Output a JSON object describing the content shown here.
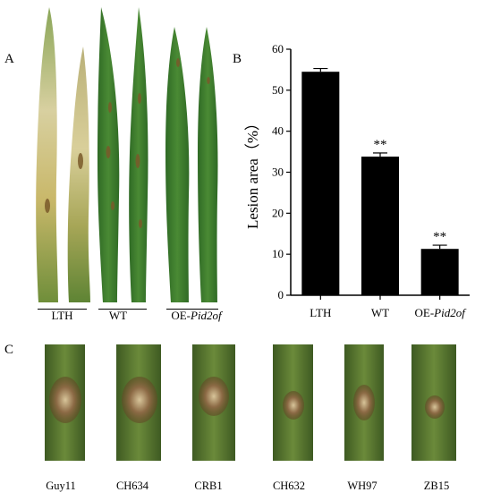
{
  "panels": {
    "a": "A",
    "b": "B",
    "c": "C"
  },
  "panel_a": {
    "groups": [
      {
        "label": "LTH"
      },
      {
        "label": "WT"
      },
      {
        "label_prefix": "OE-",
        "label_italic": "Pid2of"
      }
    ]
  },
  "panel_c": {
    "stems": [
      "Guy11",
      "CH634",
      "CRB1",
      "CH632",
      "WH97",
      "ZB15"
    ]
  },
  "chart_data": {
    "type": "bar",
    "categories": [
      "LTH",
      "WT",
      "OE-Pid2of"
    ],
    "category_display": [
      {
        "prefix": "LTH",
        "italic": ""
      },
      {
        "prefix": "WT",
        "italic": ""
      },
      {
        "prefix": "OE-",
        "italic": "Pid2of"
      }
    ],
    "values": [
      54.5,
      33.8,
      11.3
    ],
    "errors": [
      0.8,
      0.9,
      0.9
    ],
    "significance": [
      "",
      "**",
      "**"
    ],
    "ylabel": "Lesion area（%）",
    "ylim": [
      0,
      60
    ],
    "yticks": [
      0,
      10,
      20,
      30,
      40,
      50,
      60
    ],
    "grid": false,
    "bar_color": "#000000"
  },
  "colors": {
    "leaf_green": "#3f7a2c",
    "leaf_yellow": "#c8b45a",
    "stem_green": "#4f6d2c",
    "lesion_brown": "#9b6a3a"
  }
}
